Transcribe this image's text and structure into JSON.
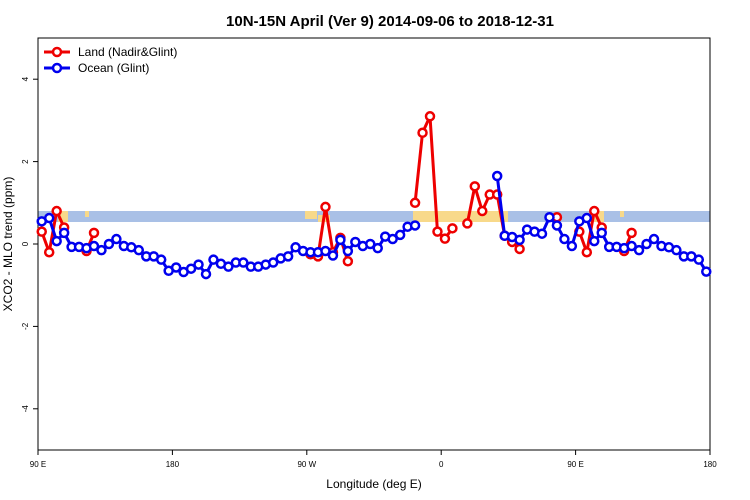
{
  "chart_data": {
    "type": "line",
    "title": "10N-15N April (Ver 9)   2014-09-06 to 2018-12-31",
    "x_label": "Longitude (deg E)",
    "y_label": "XCO2 - MLO trend (ppm)",
    "xlim": [
      90,
      540
    ],
    "ylim": [
      -5,
      5
    ],
    "xticks": [
      {
        "value": 90,
        "label": "90 E"
      },
      180,
      {
        "value": 270,
        "label": "90 W"
      },
      {
        "value": 360,
        "label": "0"
      },
      {
        "value": 450,
        "label": "90 E"
      },
      {
        "value": 540,
        "label": "180"
      }
    ],
    "yticks": [
      -4,
      -2,
      0,
      2,
      4
    ],
    "legend": "top-left",
    "x": [
      92.5,
      97.5,
      102.5,
      107.5,
      112.5,
      117.5,
      122.5,
      127.5,
      132.5,
      137.5,
      142.5,
      147.5,
      152.5,
      157.5,
      162.5,
      167.5,
      172.5,
      177.5,
      182.5,
      187.5,
      192.5,
      197.5,
      202.5,
      207.5,
      212.5,
      217.5,
      222.5,
      227.5,
      232.5,
      237.5,
      242.5,
      247.5,
      252.5,
      257.5,
      262.5,
      267.5,
      272.5,
      277.5,
      282.5,
      287.5,
      292.5,
      297.5,
      302.5,
      307.5,
      312.5,
      317.5,
      322.5,
      327.5,
      332.5,
      337.5,
      342.5,
      347.5,
      352.5,
      357.5,
      362.5,
      367.5,
      372.5,
      377.5,
      382.5,
      387.5,
      392.5,
      397.5,
      402.5,
      407.5,
      412.5,
      417.5,
      422.5,
      427.5,
      432.5,
      437.5,
      442.5,
      447.5,
      452.5,
      457.5,
      462.5,
      467.5,
      472.5,
      477.5,
      482.5,
      487.5,
      492.5,
      497.5,
      502.5,
      507.5,
      512.5,
      517.5,
      522.5,
      527.5,
      532.5,
      537.5
    ],
    "series": [
      {
        "name": "Land (Nadir&Glint)",
        "color": "#ee0000",
        "values": [
          0.3,
          -0.2,
          0.8,
          0.4,
          null,
          null,
          -0.17,
          0.27,
          null,
          null,
          null,
          null,
          null,
          null,
          null,
          null,
          null,
          null,
          null,
          null,
          null,
          null,
          null,
          null,
          null,
          null,
          null,
          null,
          null,
          null,
          null,
          null,
          null,
          null,
          null,
          null,
          -0.25,
          -0.3,
          0.9,
          -0.2,
          0.15,
          -0.42,
          null,
          null,
          null,
          null,
          null,
          null,
          null,
          null,
          1.0,
          2.7,
          3.1,
          0.3,
          0.13,
          0.38,
          null,
          0.5,
          1.4,
          0.8,
          1.2,
          1.2,
          0.2,
          0.05,
          -0.12,
          null,
          null,
          null,
          null,
          0.65,
          null,
          null,
          0.3,
          -0.2,
          0.8,
          0.4,
          null,
          null,
          -0.17,
          0.27,
          null,
          null,
          null,
          null,
          null,
          null,
          null,
          null,
          null,
          null
        ]
      },
      {
        "name": "Ocean (Glint)",
        "color": "#0000ee",
        "values": [
          0.55,
          0.63,
          0.07,
          0.27,
          -0.07,
          -0.07,
          -0.1,
          -0.05,
          -0.15,
          0,
          0.12,
          -0.05,
          -0.08,
          -0.15,
          -0.3,
          -0.3,
          -0.38,
          -0.65,
          -0.57,
          -0.68,
          -0.6,
          -0.5,
          -0.73,
          -0.38,
          -0.48,
          -0.55,
          -0.45,
          -0.45,
          -0.55,
          -0.55,
          -0.5,
          -0.45,
          -0.35,
          -0.3,
          -0.08,
          -0.17,
          -0.2,
          -0.2,
          -0.17,
          -0.28,
          0.1,
          -0.17,
          0.05,
          -0.05,
          0,
          -0.1,
          0.18,
          0.12,
          0.22,
          0.42,
          0.45,
          null,
          null,
          null,
          null,
          null,
          null,
          null,
          null,
          null,
          null,
          1.65,
          0.2,
          0.17,
          0.1,
          0.35,
          0.3,
          0.25,
          0.65,
          0.45,
          0.12,
          -0.05,
          0.55,
          0.63,
          0.07,
          0.27,
          -0.07,
          -0.07,
          -0.1,
          -0.05,
          -0.15,
          0,
          0.12,
          -0.05,
          -0.08,
          -0.15,
          -0.3,
          -0.3,
          -0.38,
          -0.67
        ]
      }
    ]
  }
}
